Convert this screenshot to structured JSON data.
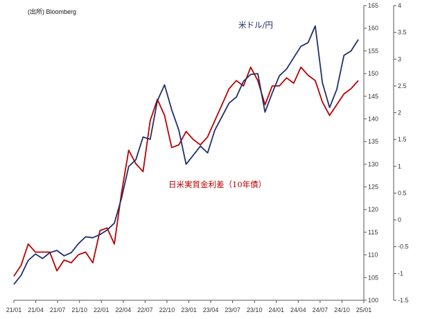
{
  "chart_data": {
    "type": "line",
    "source": "(出所) Bloomberg",
    "x_tick_labels": [
      "21/01",
      "21/04",
      "21/07",
      "21/10",
      "22/01",
      "22/04",
      "22/07",
      "22/10",
      "23/01",
      "23/04",
      "23/07",
      "23/10",
      "24/01",
      "24/04",
      "24/07",
      "24/10",
      "25/01"
    ],
    "y_left": {
      "ticks": [
        "100",
        "105",
        "110",
        "115",
        "120",
        "125",
        "130",
        "135",
        "140",
        "145",
        "150",
        "155",
        "160",
        "165"
      ],
      "ylim": [
        100,
        165
      ]
    },
    "y_right": {
      "ticks": [
        "-1.5",
        "-1",
        "-0.5",
        "0",
        "0.5",
        "1",
        "1.5",
        "2",
        "2.5",
        "3",
        "3.5",
        "4"
      ],
      "ylim": [
        -1.5,
        4
      ]
    },
    "grid": false,
    "series": [
      {
        "name": "米ドル/円",
        "axis": "left",
        "color": "#1f2f6b",
        "x": [
          "21/01",
          "21/02",
          "21/03",
          "21/04",
          "21/05",
          "21/06",
          "21/07",
          "21/08",
          "21/09",
          "21/10",
          "21/11",
          "21/12",
          "22/01",
          "22/02",
          "22/03",
          "22/04",
          "22/05",
          "22/06",
          "22/07",
          "22/08",
          "22/09",
          "22/10",
          "22/11",
          "22/12",
          "23/01",
          "23/02",
          "23/03",
          "23/04",
          "23/05",
          "23/06",
          "23/07",
          "23/08",
          "23/09",
          "23/10",
          "23/11",
          "23/12",
          "24/01",
          "24/02",
          "24/03",
          "24/04",
          "24/05",
          "24/06",
          "24/07",
          "24/08",
          "24/09",
          "24/10",
          "24/11",
          "24/12",
          "25/01"
        ],
        "values": [
          103.5,
          105.5,
          108.8,
          110.2,
          109.2,
          110.5,
          111.0,
          109.8,
          110.5,
          112.5,
          114.0,
          113.8,
          114.5,
          115.5,
          117.0,
          122.5,
          129.5,
          131.0,
          136.0,
          135.5,
          144.0,
          147.5,
          142.0,
          137.5,
          130.0,
          132.0,
          134.0,
          132.5,
          137.5,
          140.5,
          143.5,
          144.8,
          148.3,
          149.8,
          150.0,
          141.5,
          145.7,
          149.5,
          151.0,
          153.5,
          156.0,
          156.8,
          160.5,
          148.0,
          142.5,
          146.5,
          154.0,
          155.0,
          157.5
        ]
      },
      {
        "name": "日米実質金利差（10年債）",
        "axis": "right",
        "color": "#b80000",
        "x": [
          "21/01",
          "21/02",
          "21/03",
          "21/04",
          "21/05",
          "21/06",
          "21/07",
          "21/08",
          "21/09",
          "21/10",
          "21/11",
          "21/12",
          "22/01",
          "22/02",
          "22/03",
          "22/04",
          "22/05",
          "22/06",
          "22/07",
          "22/08",
          "22/09",
          "22/10",
          "22/11",
          "22/12",
          "23/01",
          "23/02",
          "23/03",
          "23/04",
          "23/05",
          "23/06",
          "23/07",
          "23/08",
          "23/09",
          "23/10",
          "23/11",
          "23/12",
          "24/01",
          "24/02",
          "24/03",
          "24/04",
          "24/05",
          "24/06",
          "24/07",
          "24/08",
          "24/09",
          "24/10",
          "24/11",
          "24/12",
          "25/01"
        ],
        "values": [
          -1.05,
          -0.85,
          -0.45,
          -0.6,
          -0.6,
          -0.6,
          -0.95,
          -0.75,
          -0.8,
          -0.65,
          -0.6,
          -0.8,
          -0.2,
          -0.15,
          -0.45,
          0.5,
          1.3,
          1.05,
          0.9,
          1.85,
          2.25,
          1.95,
          1.35,
          1.4,
          1.65,
          1.5,
          1.4,
          1.55,
          1.85,
          2.15,
          2.45,
          2.6,
          2.5,
          2.85,
          2.6,
          2.15,
          2.5,
          2.5,
          2.65,
          2.55,
          2.85,
          2.7,
          2.6,
          2.2,
          1.95,
          2.15,
          2.35,
          2.45,
          2.6
        ]
      }
    ]
  }
}
